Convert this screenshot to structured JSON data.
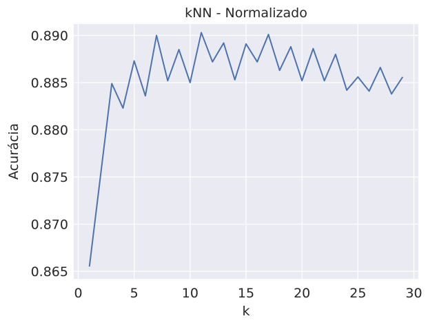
{
  "chart_data": {
    "type": "line",
    "title": "kNN - Normalizado",
    "xlabel": "k",
    "ylabel": "Acurácia",
    "xlim": [
      -0.4,
      30.4
    ],
    "ylim": [
      0.8642,
      0.8912
    ],
    "xticks": [
      0,
      5,
      10,
      15,
      20,
      25,
      30
    ],
    "yticks": [
      0.865,
      0.87,
      0.875,
      0.88,
      0.885,
      0.89
    ],
    "ytick_labels": [
      "0.865",
      "0.870",
      "0.875",
      "0.880",
      "0.885",
      "0.890"
    ],
    "grid": true,
    "background": "#eaeaf2",
    "series": [
      {
        "color": "#4c72b0",
        "x": [
          1,
          3,
          4,
          5,
          6,
          7,
          8,
          9,
          10,
          11,
          12,
          13,
          14,
          15,
          16,
          17,
          18,
          19,
          20,
          21,
          22,
          23,
          24,
          25,
          26,
          27,
          28,
          29
        ],
        "y": [
          0.8655,
          0.8849,
          0.8823,
          0.8873,
          0.8836,
          0.89,
          0.8852,
          0.8885,
          0.885,
          0.8903,
          0.8872,
          0.8892,
          0.8853,
          0.8891,
          0.8872,
          0.8901,
          0.8863,
          0.8888,
          0.8852,
          0.8886,
          0.8852,
          0.888,
          0.8842,
          0.8856,
          0.8841,
          0.8866,
          0.8838,
          0.8856
        ]
      }
    ]
  }
}
